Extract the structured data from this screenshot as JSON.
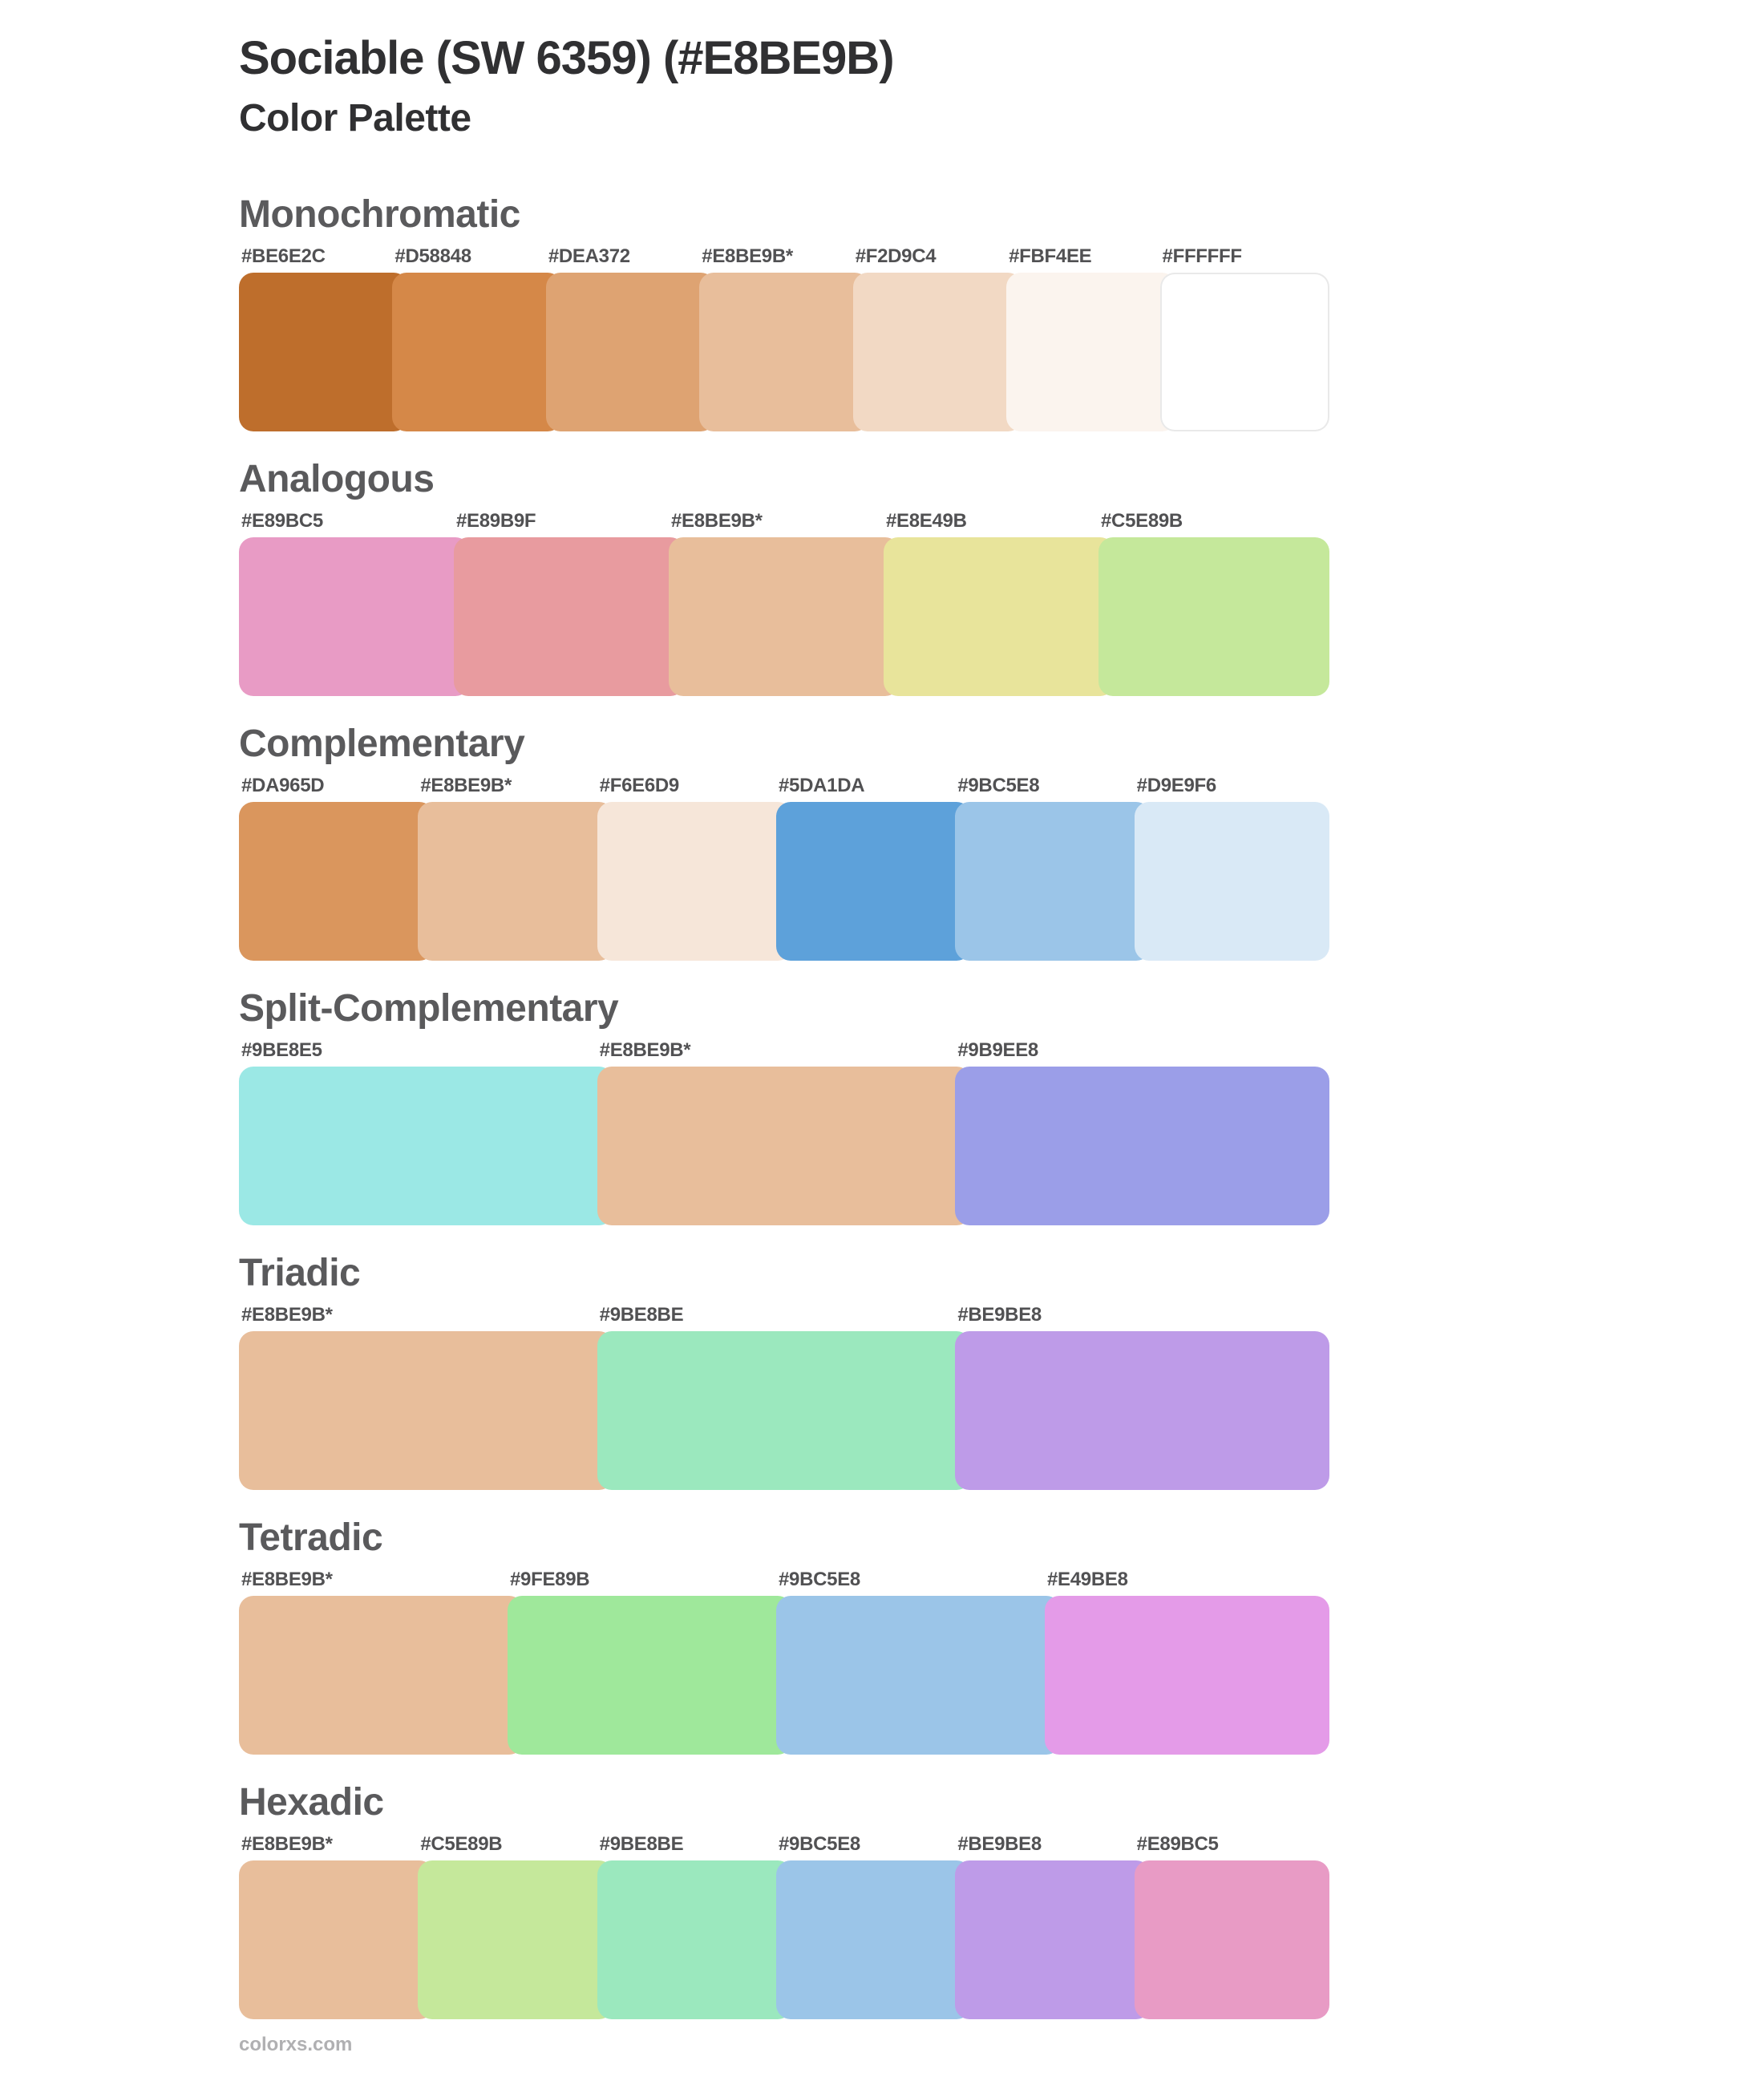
{
  "page": {
    "title": "Sociable (SW 6359) (#E8BE9B)",
    "subtitle": "Color Palette",
    "footer": "colorxs.com"
  },
  "base_color": "#E8BE9B",
  "text_colors": {
    "title": "#303032",
    "section_heading": "#5A5A5C",
    "hex_label": "#515153",
    "footer": "#B0B0B2"
  },
  "sections": [
    {
      "title": "Monochromatic",
      "swatches": [
        {
          "label": "#BE6E2C",
          "hex": "#BE6E2C"
        },
        {
          "label": "#D58848",
          "hex": "#D58848"
        },
        {
          "label": "#DEA372",
          "hex": "#DEA372"
        },
        {
          "label": "#E8BE9B*",
          "hex": "#E8BE9B"
        },
        {
          "label": "#F2D9C4",
          "hex": "#F2D9C4"
        },
        {
          "label": "#FBF4EE",
          "hex": "#FBF4EE"
        },
        {
          "label": "#FFFFFF",
          "hex": "#FFFFFF"
        }
      ]
    },
    {
      "title": "Analogous",
      "swatches": [
        {
          "label": "#E89BC5",
          "hex": "#E89BC5"
        },
        {
          "label": "#E89B9F",
          "hex": "#E89B9F"
        },
        {
          "label": "#E8BE9B*",
          "hex": "#E8BE9B"
        },
        {
          "label": "#E8E49B",
          "hex": "#E8E49B"
        },
        {
          "label": "#C5E89B",
          "hex": "#C5E89B"
        }
      ]
    },
    {
      "title": "Complementary",
      "swatches": [
        {
          "label": "#DA965D",
          "hex": "#DA965D"
        },
        {
          "label": "#E8BE9B*",
          "hex": "#E8BE9B"
        },
        {
          "label": "#F6E6D9",
          "hex": "#F6E6D9"
        },
        {
          "label": "#5DA1DA",
          "hex": "#5DA1DA"
        },
        {
          "label": "#9BC5E8",
          "hex": "#9BC5E8"
        },
        {
          "label": "#D9E9F6",
          "hex": "#D9E9F6"
        }
      ]
    },
    {
      "title": "Split-Complementary",
      "swatches": [
        {
          "label": "#9BE8E5",
          "hex": "#9BE8E5"
        },
        {
          "label": "#E8BE9B*",
          "hex": "#E8BE9B"
        },
        {
          "label": "#9B9EE8",
          "hex": "#9B9EE8"
        }
      ]
    },
    {
      "title": "Triadic",
      "swatches": [
        {
          "label": "#E8BE9B*",
          "hex": "#E8BE9B"
        },
        {
          "label": "#9BE8BE",
          "hex": "#9BE8BE"
        },
        {
          "label": "#BE9BE8",
          "hex": "#BE9BE8"
        }
      ]
    },
    {
      "title": "Tetradic",
      "swatches": [
        {
          "label": "#E8BE9B*",
          "hex": "#E8BE9B"
        },
        {
          "label": "#9FE89B",
          "hex": "#9FE89B"
        },
        {
          "label": "#9BC5E8",
          "hex": "#9BC5E8"
        },
        {
          "label": "#E49BE8",
          "hex": "#E49BE8"
        }
      ]
    },
    {
      "title": "Hexadic",
      "swatches": [
        {
          "label": "#E8BE9B*",
          "hex": "#E8BE9B"
        },
        {
          "label": "#C5E89B",
          "hex": "#C5E89B"
        },
        {
          "label": "#9BE8BE",
          "hex": "#9BE8BE"
        },
        {
          "label": "#9BC5E8",
          "hex": "#9BC5E8"
        },
        {
          "label": "#BE9BE8",
          "hex": "#BE9BE8"
        },
        {
          "label": "#E89BC5",
          "hex": "#E89BC5"
        }
      ]
    }
  ]
}
